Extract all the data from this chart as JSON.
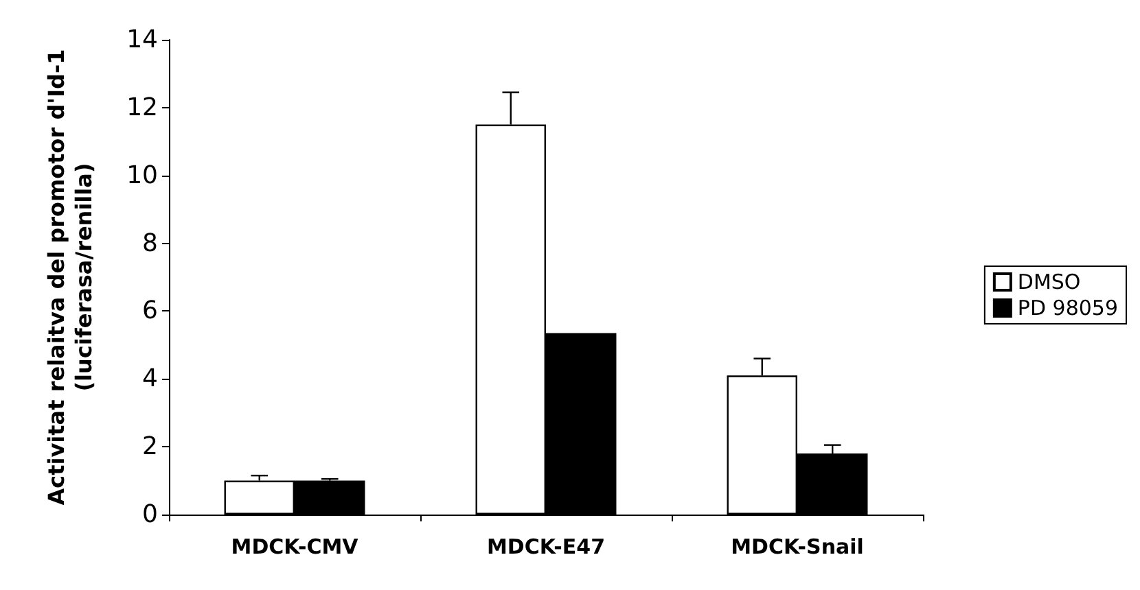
{
  "chart_data": {
    "type": "bar",
    "ylabel": "Activitat relaitva del promotor d'Id-1\n(luciferasa/renilla)",
    "categories": [
      "MDCK-CMV",
      "MDCK-E47",
      "MDCK-Snail"
    ],
    "series": [
      {
        "name": "DMSO",
        "color": "#ffffff",
        "values": [
          1.0,
          11.5,
          4.1
        ],
        "errors": [
          [
            1.0,
            1.15
          ],
          [
            11.5,
            12.45
          ],
          [
            4.1,
            4.6
          ]
        ]
      },
      {
        "name": "PD 98059",
        "color": "#000000",
        "values": [
          1.0,
          5.35,
          1.8
        ],
        "errors": [
          [
            1.0,
            1.05
          ],
          null,
          [
            1.8,
            2.05
          ]
        ]
      }
    ],
    "ylim": [
      0,
      14
    ],
    "yticks": [
      0,
      2,
      4,
      6,
      8,
      10,
      12,
      14
    ],
    "grid": false,
    "legend": "right"
  }
}
